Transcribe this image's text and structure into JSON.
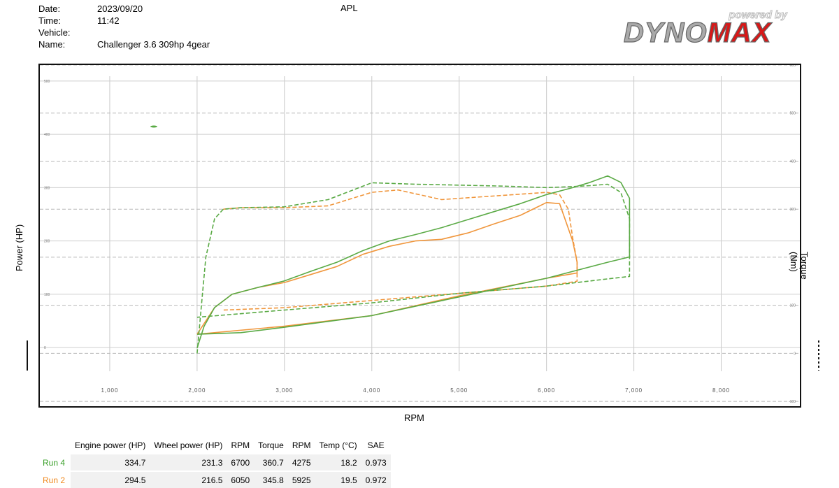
{
  "header": {
    "date_label": "Date:",
    "date": "2023/09/20",
    "time_label": "Time:",
    "time": "11:42",
    "vehicle_label": "Vehicle:",
    "vehicle": "",
    "name_label": "Name:",
    "name": "Challenger 3.6 309hp 4gear",
    "station": "APL"
  },
  "logo": {
    "small": "powered by",
    "brand_a": "DYNO",
    "brand_b": "MAX",
    "brand_b_color": "#d81818"
  },
  "chart_data": {
    "type": "line",
    "xlabel": "RPM",
    "ylabel_left": "Power (HP)",
    "ylabel_right": "Torque (Nm)",
    "x_ticks": [
      "1,000",
      "2,000",
      "3,000",
      "4,000",
      "5,000",
      "6,000",
      "7,000",
      "8,000"
    ],
    "y_left_ticks": [
      "0",
      "100",
      "200",
      "300",
      "400",
      "500"
    ],
    "y_right_ticks": [
      "-100",
      "0",
      "100",
      "200",
      "300",
      "400",
      "500",
      "600"
    ],
    "xlim": [
      200,
      8900
    ],
    "ylim_left": [
      -110,
      530
    ],
    "ylim_right": [
      -110,
      600
    ],
    "grid": true,
    "colors": {
      "run4": "#5aaa45",
      "run2": "#f0963c"
    },
    "series": [
      {
        "name": "Run 4",
        "quantity": "power",
        "style": "solid",
        "x": [
          2000,
          2080,
          2200,
          2400,
          2700,
          3000,
          3300,
          3600,
          3900,
          4200,
          4500,
          4800,
          5100,
          5400,
          5700,
          6000,
          6300,
          6500,
          6700,
          6850,
          6950,
          6950,
          6950,
          6700,
          6000,
          5000,
          4000,
          3000,
          2500,
          2000
        ],
        "y": [
          -1,
          40,
          75,
          100,
          113,
          125,
          143,
          160,
          182,
          200,
          212,
          225,
          240,
          255,
          270,
          287,
          300,
          310,
          322,
          310,
          280,
          230,
          170,
          160,
          130,
          95,
          60,
          38,
          28,
          25
        ]
      },
      {
        "name": "Run 4",
        "quantity": "torque",
        "style": "dashed",
        "x": [
          2000,
          2050,
          2100,
          2200,
          2300,
          2500,
          3000,
          3500,
          4000,
          4500,
          5000,
          5500,
          6000,
          6300,
          6500,
          6700,
          6850,
          6950,
          6950,
          6700,
          6000,
          5000,
          4000,
          3000,
          2000
        ],
        "y": [
          0,
          100,
          200,
          280,
          300,
          303,
          305,
          320,
          355,
          352,
          350,
          348,
          345,
          347,
          349,
          352,
          335,
          280,
          160,
          155,
          140,
          125,
          105,
          90,
          75
        ]
      },
      {
        "name": "Run 2",
        "quantity": "power",
        "style": "solid",
        "x": [
          2000,
          2200,
          2400,
          2700,
          3000,
          3300,
          3600,
          3900,
          4200,
          4500,
          4800,
          5100,
          5400,
          5700,
          6000,
          6150,
          6300,
          6350,
          6350,
          6000,
          5000,
          4000,
          3000,
          2000
        ],
        "y": [
          25,
          75,
          100,
          113,
          122,
          137,
          152,
          175,
          190,
          200,
          203,
          215,
          232,
          248,
          272,
          270,
          200,
          160,
          140,
          130,
          97,
          60,
          40,
          25
        ]
      },
      {
        "name": "Run 2",
        "quantity": "torque",
        "style": "dashed",
        "x": [
          2300,
          2500,
          3000,
          3500,
          4000,
          4300,
          4800,
          5200,
          5600,
          6000,
          6150,
          6250,
          6300,
          6350,
          6350,
          6000,
          5000,
          4000,
          3000,
          2300
        ],
        "y": [
          300,
          303,
          303,
          307,
          335,
          340,
          320,
          325,
          330,
          335,
          330,
          300,
          240,
          190,
          150,
          140,
          125,
          110,
          95,
          90
        ]
      }
    ]
  },
  "table": {
    "headers": [
      "Engine power (HP)",
      "Wheel power (HP)",
      "RPM",
      "Torque",
      "RPM",
      "Temp (°C)",
      "SAE"
    ],
    "rows": [
      {
        "run": "Run 4",
        "color": "#3aa02a",
        "cells": [
          "334.7",
          "231.3",
          "6700",
          "360.7",
          "4275",
          "18.2",
          "0.973"
        ]
      },
      {
        "run": "Run 2",
        "color": "#f08a20",
        "cells": [
          "294.5",
          "216.5",
          "6050",
          "345.8",
          "5925",
          "19.5",
          "0.972"
        ]
      }
    ]
  }
}
